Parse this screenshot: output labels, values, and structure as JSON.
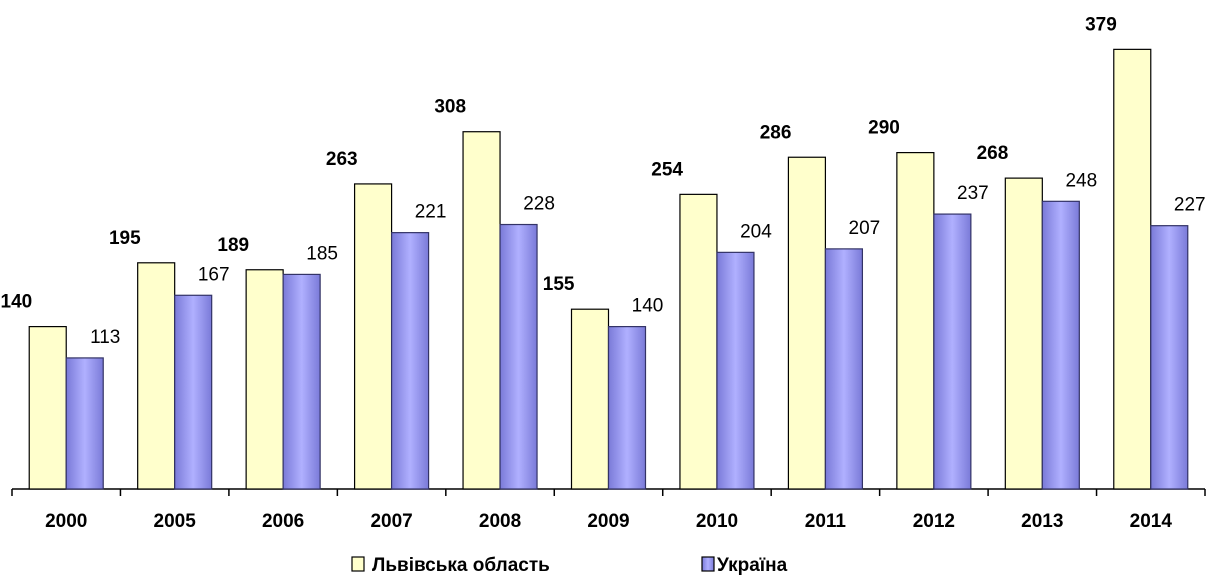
{
  "chart_data": {
    "type": "bar",
    "categories": [
      "2000",
      "2005",
      "2006",
      "2007",
      "2008",
      "2009",
      "2010",
      "2011",
      "2012",
      "2013",
      "2014"
    ],
    "series": [
      {
        "name": "Львівська область",
        "color": "#ffffcc",
        "values": [
          140,
          195,
          189,
          263,
          308,
          155,
          254,
          286,
          290,
          268,
          379
        ]
      },
      {
        "name": "Україна",
        "color": "#8c8ce8",
        "values": [
          113,
          167,
          185,
          221,
          228,
          140,
          204,
          207,
          237,
          248,
          227
        ]
      }
    ],
    "ylim": [
      0,
      400
    ],
    "legend": "bottom"
  }
}
